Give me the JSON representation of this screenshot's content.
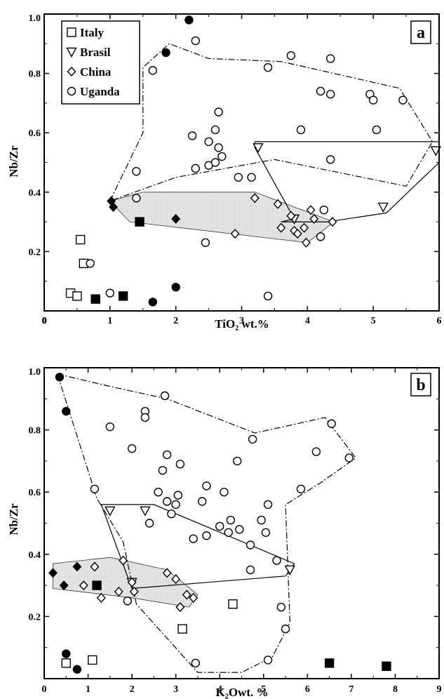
{
  "chart_data": [
    {
      "type": "scatter",
      "panel_label": "a",
      "xlabel": "TiO₂ wt.%",
      "ylabel": "Nb/Zr",
      "xlim": [
        0,
        6
      ],
      "ylim": [
        0,
        1.0
      ],
      "x_ticks": [
        0,
        1,
        2,
        3,
        4,
        5,
        6
      ],
      "y_ticks": [
        "0",
        "0.2",
        "0.4",
        "0.6",
        "0.8",
        "1.0"
      ],
      "legend": {
        "placement": "top-left",
        "entries": [
          {
            "marker": "square",
            "label": "Italy"
          },
          {
            "marker": "triangle-down",
            "label": "Brasil"
          },
          {
            "marker": "diamond",
            "label": "China"
          },
          {
            "marker": "circle",
            "label": "Uganda"
          }
        ]
      },
      "series": [
        {
          "name": "Italy",
          "marker": "square",
          "filled": false,
          "points": [
            [
              0.55,
              0.24
            ],
            [
              0.6,
              0.16
            ],
            [
              0.4,
              0.06
            ],
            [
              0.5,
              0.05
            ]
          ]
        },
        {
          "name": "Italy",
          "marker": "square",
          "filled": true,
          "points": [
            [
              0.78,
              0.04
            ],
            [
              1.2,
              0.05
            ],
            [
              1.45,
              0.3
            ]
          ]
        },
        {
          "name": "Brasil",
          "marker": "triangle-down",
          "filled": false,
          "points": [
            [
              3.25,
              0.55
            ],
            [
              3.8,
              0.31
            ],
            [
              5.15,
              0.35
            ],
            [
              5.95,
              0.54
            ]
          ]
        },
        {
          "name": "China",
          "marker": "diamond",
          "filled": false,
          "points": [
            [
              2.9,
              0.26
            ],
            [
              3.2,
              0.38
            ],
            [
              3.55,
              0.36
            ],
            [
              3.6,
              0.28
            ],
            [
              3.75,
              0.32
            ],
            [
              3.8,
              0.27
            ],
            [
              3.85,
              0.26
            ],
            [
              3.95,
              0.28
            ],
            [
              3.98,
              0.23
            ],
            [
              4.05,
              0.34
            ],
            [
              4.1,
              0.31
            ],
            [
              4.38,
              0.3
            ]
          ]
        },
        {
          "name": "China",
          "marker": "diamond",
          "filled": true,
          "points": [
            [
              1.02,
              0.37
            ],
            [
              1.05,
              0.35
            ],
            [
              2.0,
              0.31
            ]
          ]
        },
        {
          "name": "Uganda",
          "marker": "circle",
          "filled": false,
          "points": [
            [
              0.7,
              0.16
            ],
            [
              1.0,
              0.06
            ],
            [
              1.4,
              0.47
            ],
            [
              1.4,
              0.38
            ],
            [
              1.65,
              0.81
            ],
            [
              2.25,
              0.59
            ],
            [
              2.3,
              0.91
            ],
            [
              2.3,
              0.48
            ],
            [
              2.45,
              0.23
            ],
            [
              2.5,
              0.49
            ],
            [
              2.5,
              0.57
            ],
            [
              2.6,
              0.61
            ],
            [
              2.6,
              0.5
            ],
            [
              2.65,
              0.55
            ],
            [
              2.65,
              0.67
            ],
            [
              2.7,
              0.52
            ],
            [
              2.95,
              0.45
            ],
            [
              3.15,
              0.45
            ],
            [
              3.4,
              0.82
            ],
            [
              3.4,
              0.05
            ],
            [
              3.75,
              0.86
            ],
            [
              3.9,
              0.61
            ],
            [
              4.2,
              0.74
            ],
            [
              4.2,
              0.25
            ],
            [
              4.25,
              0.34
            ],
            [
              4.35,
              0.85
            ],
            [
              4.35,
              0.73
            ],
            [
              4.35,
              0.51
            ],
            [
              4.95,
              0.73
            ],
            [
              5.0,
              0.71
            ],
            [
              5.05,
              0.61
            ],
            [
              5.45,
              0.71
            ]
          ]
        },
        {
          "name": "Uganda",
          "marker": "circle",
          "filled": true,
          "points": [
            [
              1.65,
              0.03
            ],
            [
              1.85,
              0.87
            ],
            [
              2.0,
              0.08
            ],
            [
              2.2,
              0.98
            ]
          ]
        }
      ],
      "fields": [
        {
          "group": "China",
          "style": "shaded",
          "points": [
            [
              1.0,
              0.37
            ],
            [
              1.5,
              0.4
            ],
            [
              3.2,
              0.4
            ],
            [
              4.4,
              0.3
            ],
            [
              4.0,
              0.23
            ],
            [
              1.3,
              0.3
            ]
          ]
        },
        {
          "group": "Brasil",
          "style": "solid",
          "points": [
            [
              3.2,
              0.57
            ],
            [
              6.0,
              0.57
            ],
            [
              6.0,
              0.5
            ],
            [
              5.2,
              0.33
            ],
            [
              4.3,
              0.3
            ],
            [
              3.6,
              0.3
            ],
            [
              3.8,
              0.31
            ],
            [
              3.2,
              0.55
            ]
          ]
        },
        {
          "group": "Uganda",
          "style": "dash-dot",
          "points": [
            [
              1.0,
              0.37
            ],
            [
              1.5,
              0.6
            ],
            [
              1.5,
              0.82
            ],
            [
              1.9,
              0.9
            ],
            [
              2.5,
              0.85
            ],
            [
              3.6,
              0.84
            ],
            [
              5.4,
              0.75
            ],
            [
              5.9,
              0.57
            ],
            [
              5.5,
              0.42
            ],
            [
              3.5,
              0.51
            ],
            [
              2.0,
              0.45
            ],
            [
              1.0,
              0.37
            ]
          ]
        }
      ]
    },
    {
      "type": "scatter",
      "panel_label": "b",
      "xlabel": "K₂Owt. %",
      "ylabel": "Nb/Zr",
      "xlim": [
        0,
        9
      ],
      "ylim": [
        0,
        1.0
      ],
      "x_ticks": [
        0,
        1,
        2,
        3,
        4,
        5,
        6,
        7,
        8,
        9
      ],
      "y_ticks": [
        "0.2",
        "0.4",
        "0.6",
        "0.8",
        "1.0"
      ],
      "series": [
        {
          "name": "Italy",
          "marker": "square",
          "filled": false,
          "points": [
            [
              0.5,
              0.05
            ],
            [
              1.1,
              0.06
            ],
            [
              3.15,
              0.16
            ],
            [
              4.3,
              0.24
            ]
          ]
        },
        {
          "name": "Italy",
          "marker": "square",
          "filled": true,
          "points": [
            [
              1.2,
              0.3
            ],
            [
              6.5,
              0.05
            ],
            [
              7.8,
              0.04
            ]
          ]
        },
        {
          "name": "Brasil",
          "marker": "triangle-down",
          "filled": false,
          "points": [
            [
              1.5,
              0.54
            ],
            [
              2.0,
              0.31
            ],
            [
              2.3,
              0.54
            ],
            [
              5.6,
              0.35
            ]
          ]
        },
        {
          "name": "China",
          "marker": "diamond",
          "filled": false,
          "points": [
            [
              0.9,
              0.3
            ],
            [
              1.15,
              0.36
            ],
            [
              1.3,
              0.26
            ],
            [
              1.7,
              0.28
            ],
            [
              1.8,
              0.38
            ],
            [
              2.0,
              0.31
            ],
            [
              2.05,
              0.28
            ],
            [
              2.8,
              0.34
            ],
            [
              3.0,
              0.32
            ],
            [
              3.1,
              0.23
            ],
            [
              3.25,
              0.27
            ],
            [
              3.4,
              0.26
            ]
          ]
        },
        {
          "name": "China",
          "marker": "diamond",
          "filled": true,
          "points": [
            [
              0.2,
              0.34
            ],
            [
              0.45,
              0.3
            ],
            [
              0.75,
              0.36
            ]
          ]
        },
        {
          "name": "Uganda",
          "marker": "circle",
          "filled": false,
          "points": [
            [
              1.15,
              0.61
            ],
            [
              1.5,
              0.81
            ],
            [
              1.9,
              0.25
            ],
            [
              2.0,
              0.74
            ],
            [
              2.3,
              0.86
            ],
            [
              2.3,
              0.84
            ],
            [
              2.4,
              0.5
            ],
            [
              2.6,
              0.6
            ],
            [
              2.7,
              0.67
            ],
            [
              2.75,
              0.91
            ],
            [
              2.8,
              0.72
            ],
            [
              2.8,
              0.57
            ],
            [
              2.9,
              0.53
            ],
            [
              3.0,
              0.56
            ],
            [
              3.05,
              0.59
            ],
            [
              3.1,
              0.69
            ],
            [
              3.45,
              0.05
            ],
            [
              3.4,
              0.45
            ],
            [
              3.6,
              0.57
            ],
            [
              3.7,
              0.46
            ],
            [
              3.7,
              0.62
            ],
            [
              4.0,
              0.49
            ],
            [
              4.1,
              0.6
            ],
            [
              4.2,
              0.47
            ],
            [
              4.25,
              0.51
            ],
            [
              4.4,
              0.7
            ],
            [
              4.45,
              0.48
            ],
            [
              4.7,
              0.43
            ],
            [
              4.7,
              0.35
            ],
            [
              4.75,
              0.77
            ],
            [
              4.95,
              0.51
            ],
            [
              5.05,
              0.47
            ],
            [
              5.1,
              0.56
            ],
            [
              5.1,
              0.06
            ],
            [
              5.3,
              0.38
            ],
            [
              5.4,
              0.23
            ],
            [
              5.5,
              0.16
            ],
            [
              5.85,
              0.61
            ],
            [
              6.2,
              0.73
            ],
            [
              6.55,
              0.82
            ],
            [
              6.95,
              0.71
            ]
          ]
        },
        {
          "name": "Uganda",
          "marker": "circle",
          "filled": true,
          "points": [
            [
              0.35,
              0.97
            ],
            [
              0.5,
              0.86
            ],
            [
              0.5,
              0.08
            ],
            [
              0.75,
              0.03
            ]
          ]
        }
      ],
      "fields": [
        {
          "group": "China",
          "style": "shaded",
          "points": [
            [
              0.2,
              0.37
            ],
            [
              1.5,
              0.39
            ],
            [
              2.8,
              0.35
            ],
            [
              3.5,
              0.27
            ],
            [
              3.3,
              0.23
            ],
            [
              2.0,
              0.26
            ],
            [
              0.2,
              0.29
            ]
          ]
        },
        {
          "group": "Brasil",
          "style": "solid",
          "points": [
            [
              1.3,
              0.56
            ],
            [
              2.5,
              0.56
            ],
            [
              5.7,
              0.37
            ],
            [
              5.5,
              0.33
            ],
            [
              2.0,
              0.29
            ],
            [
              1.3,
              0.56
            ]
          ]
        },
        {
          "group": "Uganda",
          "style": "dash-dot",
          "points": [
            [
              0.3,
              0.98
            ],
            [
              1.5,
              0.94
            ],
            [
              2.8,
              0.9
            ],
            [
              4.8,
              0.79
            ],
            [
              6.4,
              0.84
            ],
            [
              7.1,
              0.71
            ],
            [
              6.3,
              0.63
            ],
            [
              5.5,
              0.56
            ],
            [
              5.6,
              0.18
            ],
            [
              5.2,
              0.07
            ],
            [
              4.5,
              0.02
            ],
            [
              3.5,
              0.02
            ],
            [
              2.1,
              0.24
            ],
            [
              1.8,
              0.44
            ],
            [
              1.2,
              0.58
            ],
            [
              0.3,
              0.98
            ]
          ]
        }
      ]
    }
  ]
}
